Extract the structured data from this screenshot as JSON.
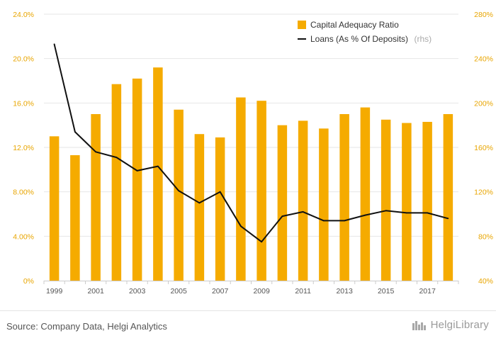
{
  "chart_data": {
    "type": "bar",
    "categories": [
      "1999",
      "2000",
      "2001",
      "2002",
      "2003",
      "2004",
      "2005",
      "2006",
      "2007",
      "2008",
      "2009",
      "2010",
      "2011",
      "2012",
      "2013",
      "2014",
      "2015",
      "2016",
      "2017",
      "2018"
    ],
    "x_tick_labels": [
      "1999",
      "2001",
      "2003",
      "2005",
      "2007",
      "2009",
      "2011",
      "2013",
      "2015",
      "2017"
    ],
    "series": [
      {
        "name": "Capital Adequacy Ratio",
        "type": "bar",
        "axis": "left",
        "color": "#f5ab00",
        "values": [
          13.0,
          11.3,
          15.0,
          17.7,
          18.2,
          19.2,
          15.4,
          13.2,
          12.9,
          16.5,
          16.2,
          14.0,
          14.4,
          13.7,
          15.0,
          15.6,
          14.5,
          14.2,
          14.3,
          15.0
        ]
      },
      {
        "name": "Loans (As % Of Deposits)",
        "name_suffix": "(rhs)",
        "type": "line",
        "axis": "right",
        "color": "#111111",
        "values": [
          253,
          174,
          156,
          151,
          139,
          143,
          121,
          110,
          120,
          89,
          75,
          98,
          102,
          94,
          94,
          99,
          103,
          101,
          101,
          96
        ]
      }
    ],
    "y_left": {
      "ylim": [
        0,
        24
      ],
      "ticks": [
        0,
        4,
        8,
        12,
        16,
        20,
        24
      ],
      "tick_labels": [
        "0%",
        "4.00%",
        "8.00%",
        "12.0%",
        "16.0%",
        "20.0%",
        "24.0%"
      ]
    },
    "y_right": {
      "ylim": [
        40,
        280
      ],
      "ticks": [
        40,
        80,
        120,
        160,
        200,
        240,
        280
      ],
      "tick_labels": [
        "40%",
        "80%",
        "120%",
        "160%",
        "200%",
        "240%",
        "280%"
      ]
    },
    "grid": true,
    "legend_position": "top-right"
  },
  "footer": {
    "source": "Source: Company Data, Helgi Analytics",
    "logo_text": "HelgiLibrary"
  },
  "icons": {
    "logo": "helgi-library-logo-icon"
  }
}
